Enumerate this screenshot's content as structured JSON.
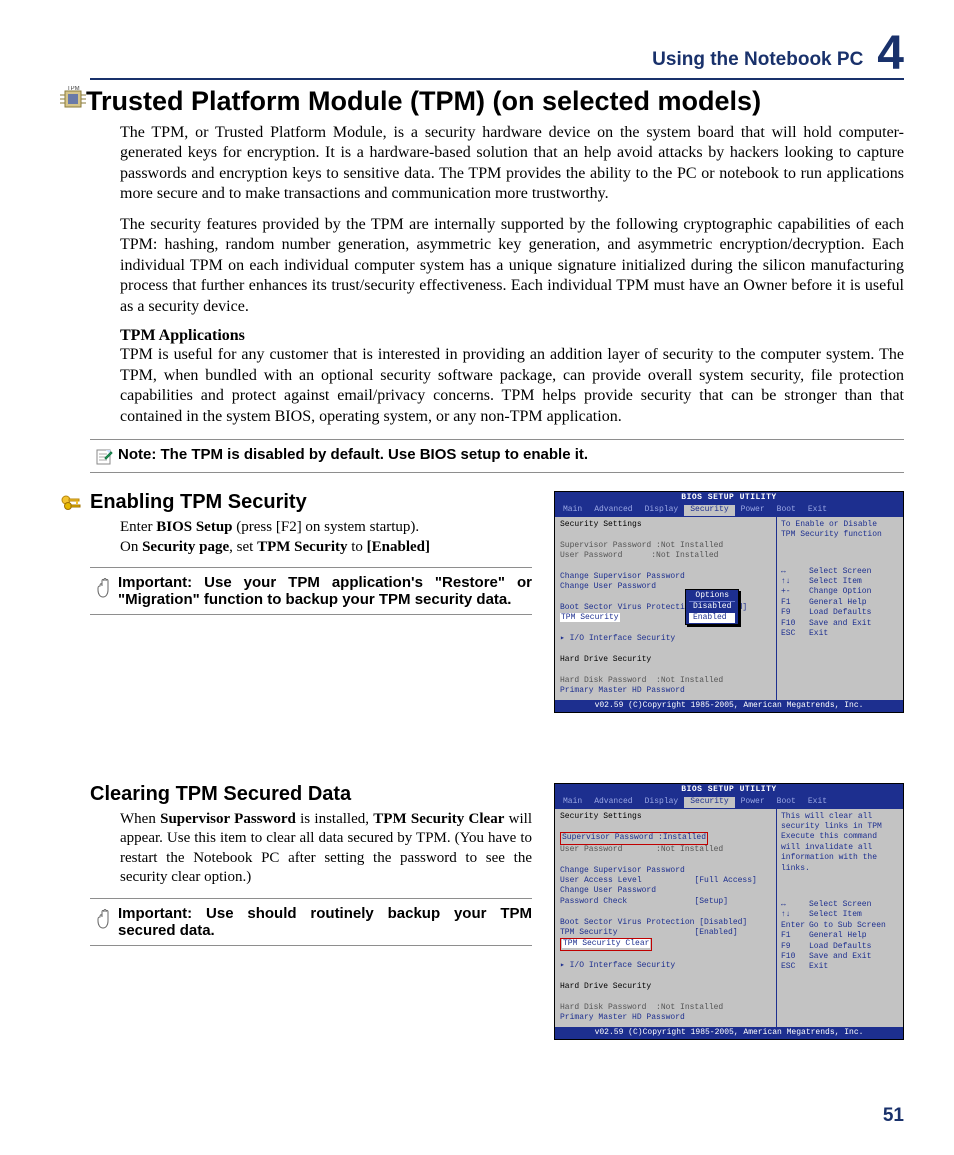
{
  "header": {
    "title": "Using the Notebook PC",
    "chapter": "4"
  },
  "page_number": "51",
  "title": "Trusted Platform Module (TPM) (on selected models)",
  "para1": "The TPM, or Trusted Platform Module, is a security hardware device on the system board that will hold computer-generated keys for encryption. It is a hardware-based solution that an help avoid attacks by hackers looking to capture passwords and encryption keys to sensitive data. The TPM provides the ability to the PC or notebook to run applications more secure and to make transactions and communication more trustworthy.",
  "para2": "The security features provided by the TPM are internally supported by the following cryptographic capabilities of each TPM: hashing, random number generation, asymmetric key generation, and asymmetric encryption/decryption. Each individual TPM on each individual computer system has a unique signature initialized during the silicon manufacturing process that further enhances its trust/security effectiveness. Each individual TPM must have an Owner before it is useful as a security device.",
  "tpm_apps_head": "TPM Applications",
  "para3": "TPM is useful for any customer that is interested in providing an addition layer of security to the computer system. The TPM, when bundled with an optional security software package, can provide overall system security, file protection capabilities and protect against email/privacy concerns. TPM helps provide security that can be stronger than that contained in the system BIOS, operating system, or any non-TPM application.",
  "note": "Note: The TPM is disabled by default. Use BIOS setup to enable it.",
  "sec_enable": {
    "title": "Enabling TPM Security",
    "l1a": "Enter ",
    "l1b": "BIOS Setup",
    "l1c": " (press [F2] on system startup).",
    "l2a": "On ",
    "l2b": "Security page",
    "l2c": ", set ",
    "l2d": "TPM Security",
    "l2e": " to ",
    "l2f": "[Enabled]",
    "important": "Important: Use your TPM application's \"Restore\" or \"Migration\" function to backup your TPM security data."
  },
  "sec_clear": {
    "title": "Clearing TPM Secured Data",
    "l1a": "When ",
    "l1b": "Supervisor Password",
    "l1c": " is installed, ",
    "l1d": "TPM Security Clear",
    "l1e": " will appear. Use this item to clear all data secured by TPM. (You have to restart the Notebook PC after setting the password to see the security clear option.)",
    "important": "Important: Use should routinely backup your TPM secured data."
  },
  "bios1": {
    "title": "BIOS SETUP UTILITY",
    "tabs": [
      "Main",
      "Advanced",
      "Display",
      "Security",
      "Power",
      "Boot",
      "Exit"
    ],
    "active_tab": 3,
    "help": "To Enable or Disable\nTPM Security function",
    "main": [
      {
        "t": "Security Settings",
        "cls": "bios-black"
      },
      {
        "t": " "
      },
      {
        "t": "Supervisor Password :Not Installed",
        "cls": "bios-gray"
      },
      {
        "t": "User Password      :Not Installed",
        "cls": "bios-gray"
      },
      {
        "t": " "
      },
      {
        "t": "Change Supervisor Password"
      },
      {
        "t": "Change User Password"
      },
      {
        "t": " "
      },
      {
        "t": "Boot Sector Virus Protection [Disabled]"
      },
      {
        "t": "TPM Security",
        "hl": true
      },
      {
        "t": " "
      },
      {
        "t": "▸ I/O Interface Security"
      },
      {
        "t": " "
      },
      {
        "t": "Hard Drive Security",
        "cls": "bios-black"
      },
      {
        "t": " "
      },
      {
        "t": "Hard Disk Password  :Not Installed",
        "cls": "bios-gray"
      },
      {
        "t": "Primary Master HD Password"
      }
    ],
    "popup": {
      "title": "Options",
      "options": [
        "Disabled",
        "Enabled"
      ],
      "selected": 1
    },
    "keys": [
      [
        "↔",
        "Select Screen"
      ],
      [
        "↑↓",
        "Select Item"
      ],
      [
        "+-",
        "Change Option"
      ],
      [
        "F1",
        "General Help"
      ],
      [
        "F9",
        "Load Defaults"
      ],
      [
        "F10",
        "Save and Exit"
      ],
      [
        "ESC",
        "Exit"
      ]
    ],
    "footer": "v02.59 (C)Copyright 1985-2005, American Megatrends, Inc."
  },
  "bios2": {
    "title": "BIOS SETUP UTILITY",
    "tabs": [
      "Main",
      "Advanced",
      "Display",
      "Security",
      "Power",
      "Boot",
      "Exit"
    ],
    "active_tab": 3,
    "help": "This will clear all\nsecurity links in TPM\nExecute this command\nwill invalidate all\ninformation with the\nlinks.",
    "main": [
      {
        "t": "Security Settings",
        "cls": "bios-black"
      },
      {
        "t": " "
      },
      {
        "t": "Supervisor Password :Installed",
        "red": true
      },
      {
        "t": "User Password       :Not Installed",
        "cls": "bios-gray"
      },
      {
        "t": " "
      },
      {
        "t": "Change Supervisor Password"
      },
      {
        "t": "User Access Level           [Full Access]"
      },
      {
        "t": "Change User Password"
      },
      {
        "t": "Password Check              [Setup]"
      },
      {
        "t": " "
      },
      {
        "t": "Boot Sector Virus Protection [Disabled]"
      },
      {
        "t": "TPM Security                [Enabled]"
      },
      {
        "t": "TPM Security Clear",
        "hl": true,
        "red": true
      },
      {
        "t": " "
      },
      {
        "t": "▸ I/O Interface Security"
      },
      {
        "t": " "
      },
      {
        "t": "Hard Drive Security",
        "cls": "bios-black"
      },
      {
        "t": " "
      },
      {
        "t": "Hard Disk Password  :Not Installed",
        "cls": "bios-gray"
      },
      {
        "t": "Primary Master HD Password"
      }
    ],
    "keys": [
      [
        "↔",
        "Select Screen"
      ],
      [
        "↑↓",
        "Select Item"
      ],
      [
        "Enter",
        "Go to Sub Screen"
      ],
      [
        "F1",
        "General Help"
      ],
      [
        "F9",
        "Load Defaults"
      ],
      [
        "F10",
        "Save and Exit"
      ],
      [
        "ESC",
        "Exit"
      ]
    ],
    "footer": "v02.59 (C)Copyright 1985-2005, American Megatrends, Inc."
  },
  "colors": {
    "brand": "#19316b",
    "bios_blue": "#1d2f8f",
    "bios_gray": "#c3c3c3",
    "red": "#c00000"
  }
}
